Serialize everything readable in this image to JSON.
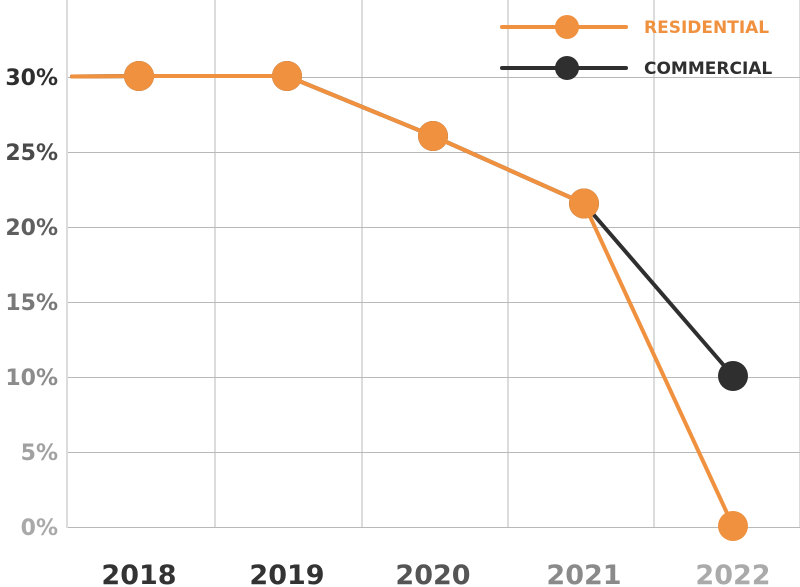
{
  "chart_data": {
    "type": "line",
    "title": "",
    "xlabel": "",
    "ylabel": "",
    "categories": [
      "2018",
      "2019",
      "2020",
      "2021",
      "2022"
    ],
    "ylim": [
      0,
      30
    ],
    "yticks": [
      0,
      5,
      10,
      15,
      20,
      25,
      30
    ],
    "ytick_labels": [
      "0%",
      "5%",
      "10%",
      "15%",
      "20%",
      "25%",
      "30%"
    ],
    "grid": true,
    "legend_position": "top-right",
    "series": [
      {
        "name": "COMMERCIAL",
        "color": "#2f2f2f",
        "values": [
          30,
          30,
          26,
          21.5,
          10
        ]
      },
      {
        "name": "RESIDENTIAL",
        "color": "#f0913f",
        "values": [
          30,
          30,
          26,
          21.5,
          0
        ]
      }
    ],
    "legend_order": [
      "RESIDENTIAL",
      "COMMERCIAL"
    ],
    "ytick_colors": {
      "0": "#a9a9a9",
      "5": "#a1a1a1",
      "10": "#8c8c8c",
      "15": "#787878",
      "20": "#5f5f5f",
      "25": "#4a4a4a",
      "30": "#2e2e2e"
    },
    "xtick_colors": [
      "#333333",
      "#333333",
      "#555555",
      "#8a8a8a",
      "#aaaaaa"
    ]
  }
}
